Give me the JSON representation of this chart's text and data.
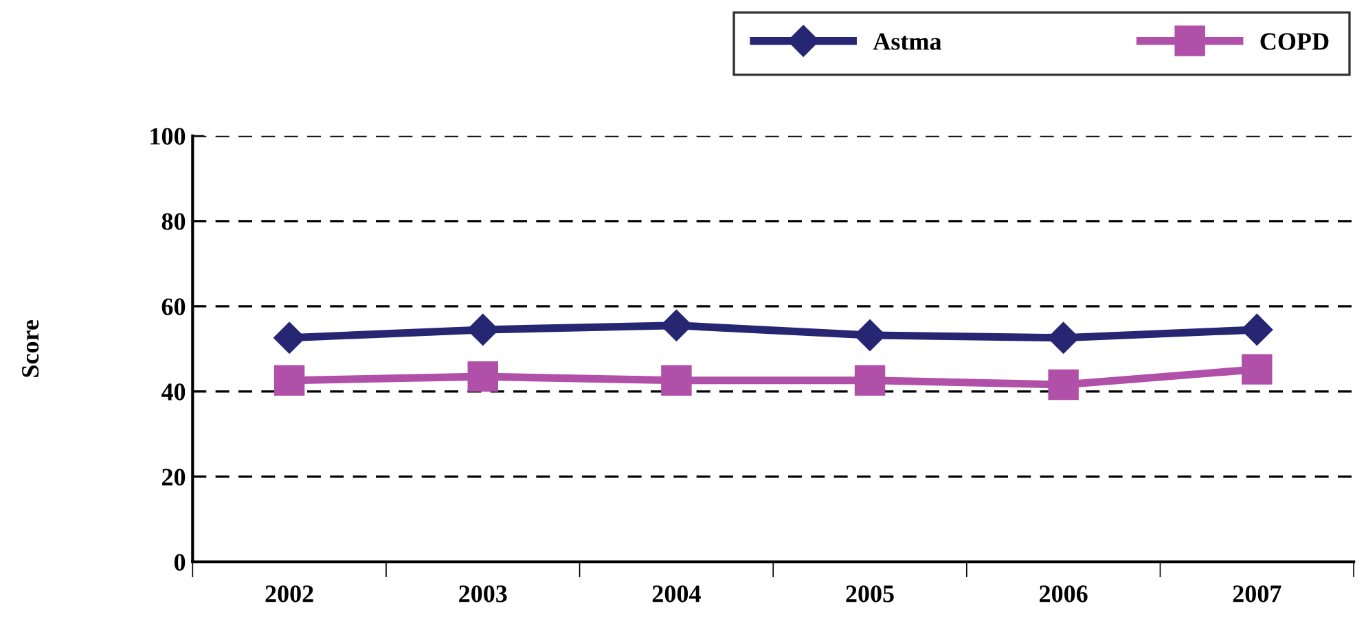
{
  "chart_data": {
    "type": "line",
    "ylabel": "Score",
    "categories": [
      "2002",
      "2003",
      "2004",
      "2005",
      "2006",
      "2007"
    ],
    "series": [
      {
        "name": "Astma",
        "color": "#262673",
        "values": [
          52.6,
          54.5,
          55.5,
          53.2,
          52.6,
          54.5
        ],
        "marker": "diamond"
      },
      {
        "name": "COPD",
        "color": "#b050a8",
        "values": [
          42.6,
          43.5,
          42.6,
          42.6,
          41.6,
          45.2
        ],
        "marker": "square"
      }
    ],
    "ylim": [
      0,
      100
    ],
    "yticks": [
      0,
      20,
      40,
      60,
      80,
      100
    ],
    "grid": "y",
    "legend": "top right",
    "line_style": "solid"
  }
}
